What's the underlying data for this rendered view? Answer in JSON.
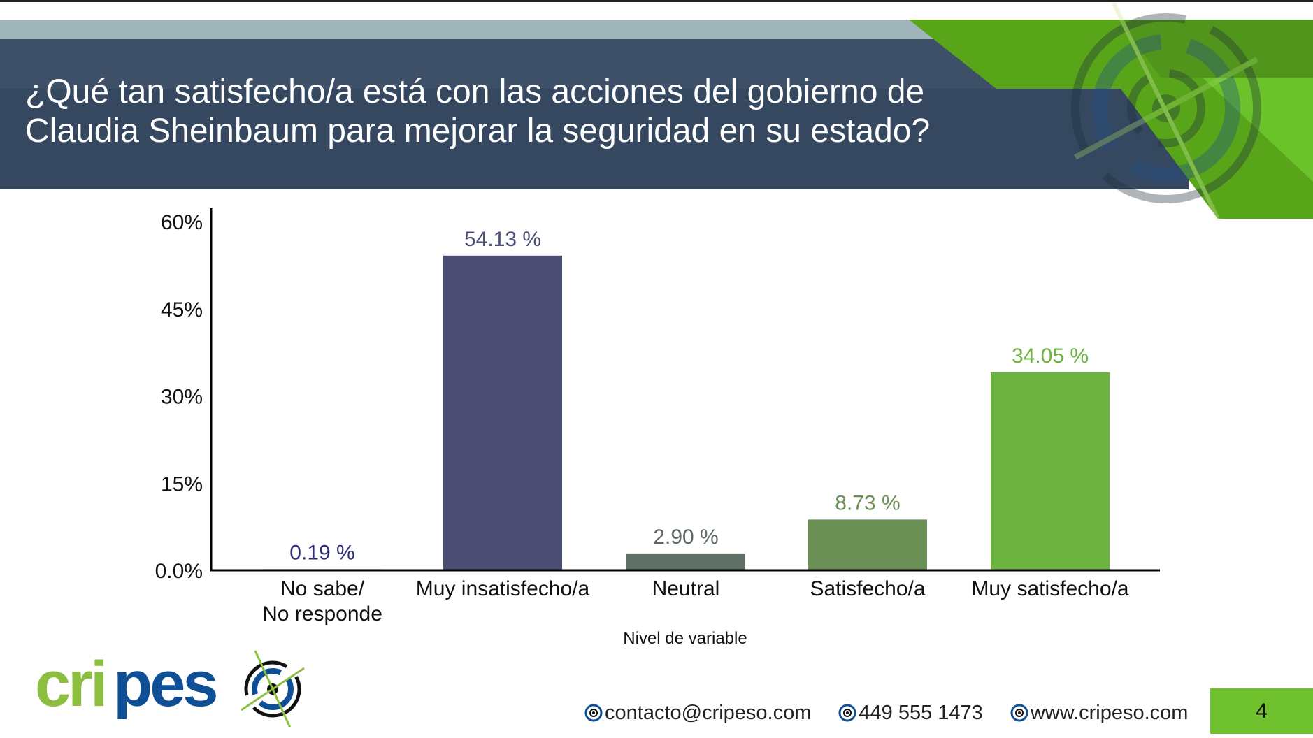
{
  "header": {
    "title": "¿Qué tan satisfecho/a está con las acciones del gobierno de Claudia Sheinbaum para mejorar la seguridad en su estado?"
  },
  "chart_data": {
    "type": "bar",
    "title": "¿Qué tan satisfecho/a está con las acciones del gobierno de Claudia Sheinbaum para mejorar la seguridad en su estado?",
    "categories": [
      [
        "No sabe/",
        "No responde"
      ],
      [
        "Muy insatisfecho/a"
      ],
      [
        "Neutral"
      ],
      [
        "Satisfecho/a"
      ],
      [
        "Muy satisfecho/a"
      ]
    ],
    "values": [
      0.19,
      54.13,
      2.9,
      8.73,
      34.05
    ],
    "value_labels": [
      "0.19 %",
      "54.13 %",
      "2.90 %",
      "8.73 %",
      "34.05 %"
    ],
    "colors": [
      "#4b4e72",
      "#4b4e72",
      "#5e7065",
      "#6a9055",
      "#6db33f"
    ],
    "label_colors": [
      "#2e2e7a",
      "#4b4e72",
      "#5e6a64",
      "#6a9055",
      "#6db33f"
    ],
    "xlabel": "Nivel de variable",
    "ylabel": "",
    "ylim": [
      0,
      60
    ],
    "yticks": [
      0,
      15,
      30,
      45,
      60
    ],
    "ytick_labels": [
      "0.0%",
      "15%",
      "30%",
      "45%",
      "60%"
    ],
    "grid": false
  },
  "footer": {
    "logo_text": "cripeso",
    "email": "contacto@cripeso.com",
    "phone": "449 555 1473",
    "website": "www.cripeso.com",
    "page_number": "4"
  }
}
